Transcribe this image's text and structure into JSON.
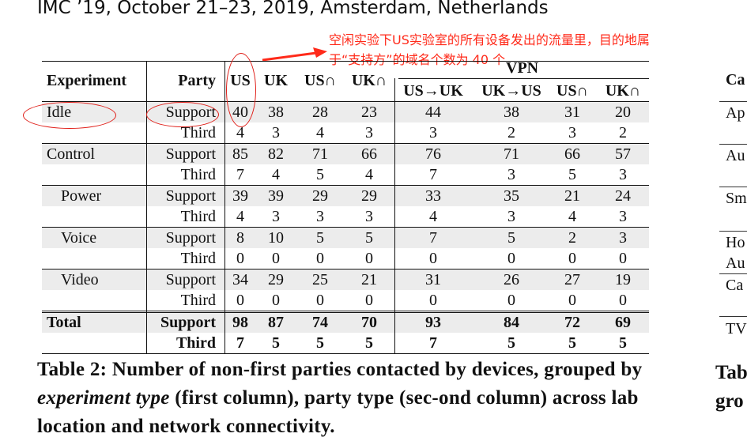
{
  "header": "IMC ’19, October 21–23, 2019, Amsterdam, Netherlands",
  "annotation": {
    "line1": "空闲实验下US实验室的所有设备发出的流量里，目的地属",
    "line2": "于“支持方”的域名个数为 40 个"
  },
  "table": {
    "vpn_label": "VPN",
    "headers": [
      "Experiment",
      "Party",
      "US",
      "UK",
      "US∩",
      "UK∩",
      "US→UK",
      "UK→US",
      "US∩",
      "UK∩"
    ],
    "rows": [
      {
        "exp": "Idle",
        "party": "Support",
        "values": [
          "40",
          "38",
          "28",
          "23",
          "44",
          "38",
          "31",
          "20"
        ]
      },
      {
        "exp": "",
        "party": "Third",
        "values": [
          "4",
          "3",
          "4",
          "3",
          "3",
          "2",
          "3",
          "2"
        ]
      },
      {
        "exp": "Control",
        "party": "Support",
        "values": [
          "85",
          "82",
          "71",
          "66",
          "76",
          "71",
          "66",
          "57"
        ]
      },
      {
        "exp": "",
        "party": "Third",
        "values": [
          "7",
          "4",
          "5",
          "4",
          "7",
          "3",
          "5",
          "3"
        ]
      },
      {
        "exp": "Power",
        "party": "Support",
        "values": [
          "39",
          "39",
          "29",
          "29",
          "33",
          "35",
          "21",
          "24"
        ]
      },
      {
        "exp": "",
        "party": "Third",
        "values": [
          "4",
          "3",
          "3",
          "3",
          "4",
          "3",
          "4",
          "3"
        ]
      },
      {
        "exp": "Voice",
        "party": "Support",
        "values": [
          "8",
          "10",
          "5",
          "5",
          "7",
          "5",
          "2",
          "3"
        ]
      },
      {
        "exp": "",
        "party": "Third",
        "values": [
          "0",
          "0",
          "0",
          "0",
          "0",
          "0",
          "0",
          "0"
        ]
      },
      {
        "exp": "Video",
        "party": "Support",
        "values": [
          "34",
          "29",
          "25",
          "21",
          "31",
          "26",
          "27",
          "19"
        ]
      },
      {
        "exp": "",
        "party": "Third",
        "values": [
          "0",
          "0",
          "0",
          "0",
          "0",
          "0",
          "0",
          "0"
        ]
      },
      {
        "exp": "Total",
        "party": "Support",
        "values": [
          "98",
          "87",
          "74",
          "70",
          "93",
          "84",
          "72",
          "69"
        ]
      },
      {
        "exp": "",
        "party": "Third",
        "values": [
          "7",
          "5",
          "5",
          "5",
          "7",
          "5",
          "5",
          "5"
        ]
      }
    ]
  },
  "caption": {
    "part1": "Table 2: Number of non-first parties contacted by devices, grouped by ",
    "italic": "experiment type",
    "part2": " (first column), party type (sec-ond column) across lab location and network connectivity."
  },
  "right_column": {
    "header_frag": "Ca",
    "items": [
      "Ap",
      "Au",
      "Sm",
      "Ho",
      "Au",
      "Ca",
      "TV"
    ],
    "caption_frag1": "Tab",
    "caption_frag2": "gro"
  }
}
